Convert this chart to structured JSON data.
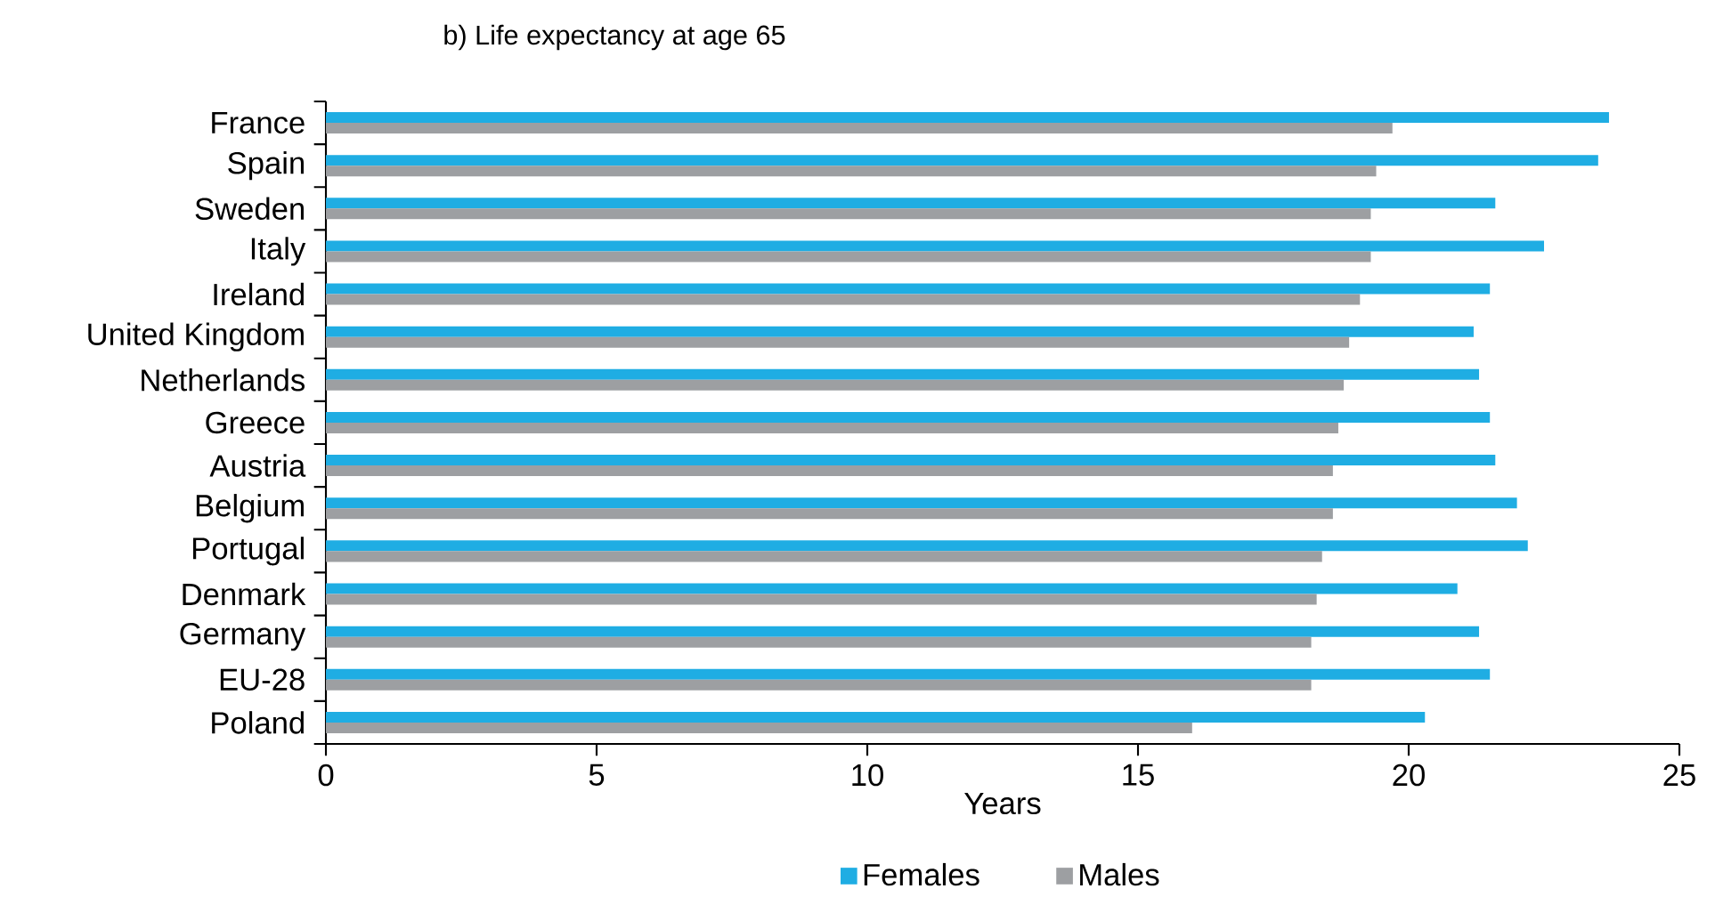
{
  "chart_data": {
    "type": "bar",
    "orientation": "horizontal",
    "title": "b) Life expectancy at age 65",
    "xlabel": "Years",
    "categories": [
      "France",
      "Spain",
      "Sweden",
      "Italy",
      "Ireland",
      "United Kingdom",
      "Netherlands",
      "Greece",
      "Austria",
      "Belgium",
      "Portugal",
      "Denmark",
      "Germany",
      "EU-28",
      "Poland"
    ],
    "series": [
      {
        "name": "Females",
        "color": "#1fade3",
        "values": [
          23.7,
          23.5,
          21.6,
          22.5,
          21.5,
          21.2,
          21.3,
          21.5,
          21.6,
          22.0,
          22.2,
          20.9,
          21.3,
          21.5,
          20.3
        ]
      },
      {
        "name": "Males",
        "color": "#9d9fa2",
        "values": [
          19.7,
          19.4,
          19.3,
          19.3,
          19.1,
          18.9,
          18.8,
          18.7,
          18.6,
          18.6,
          18.4,
          18.3,
          18.2,
          18.2,
          16.0
        ]
      }
    ],
    "xlim": [
      0,
      25
    ],
    "xticks": [
      0,
      5,
      10,
      15,
      20,
      25
    ],
    "grid": false,
    "legend": "bottom"
  }
}
